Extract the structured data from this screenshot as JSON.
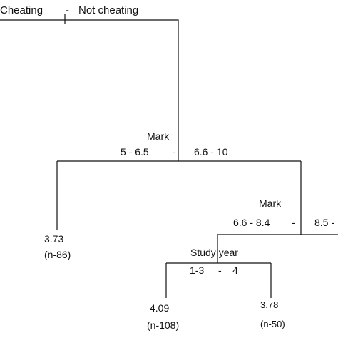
{
  "tree": {
    "root": {
      "left_label": "Cheating",
      "separator": "-",
      "right_label": "Not cheating"
    },
    "split_mark_1": {
      "variable": "Mark",
      "left_branch": "5 - 6.5",
      "separator": "-",
      "right_branch": "6.6 - 10"
    },
    "leaf_low_mark": {
      "value": "3.73",
      "count": "(n-86)"
    },
    "split_mark_2": {
      "variable": "Mark",
      "left_branch": "6.6 - 8.4",
      "separator": "-",
      "right_branch": "8.5 -"
    },
    "split_study_year": {
      "variable": "Study year",
      "left_branch": "1-3",
      "separator": "-",
      "right_branch": "4"
    },
    "leaf_year_1_3": {
      "value": "4.09",
      "count": "(n-108)"
    },
    "leaf_year_4": {
      "value": "3.78",
      "count": "(n-50)"
    }
  }
}
